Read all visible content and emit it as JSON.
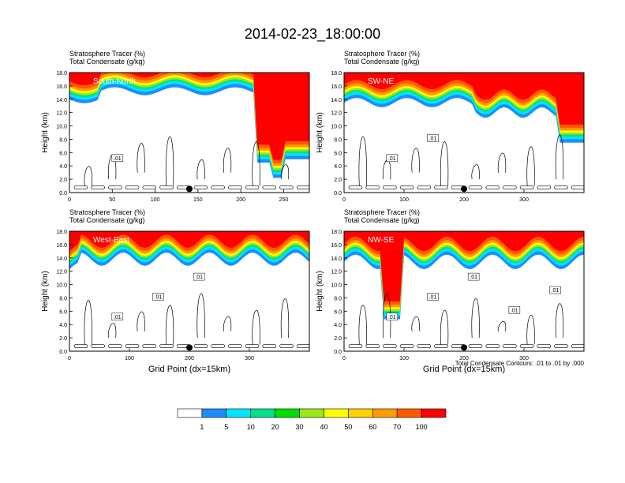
{
  "title": "2014-02-23_18:00:00",
  "colorbar": {
    "labels": [
      "1",
      "5",
      "10",
      "20",
      "30",
      "40",
      "50",
      "60",
      "70",
      "100"
    ],
    "colors": [
      "#ffffff",
      "#1e8cff",
      "#00e5ff",
      "#00e08a",
      "#00dd00",
      "#9be81a",
      "#ffff00",
      "#ffd000",
      "#ff9a00",
      "#ff5a00",
      "#ff0000"
    ]
  },
  "contour_note": "Total Condensate Contours: .01 to .01 by .000",
  "chart_data": [
    {
      "type": "heatmap",
      "panel_label": "South-North",
      "subtitle_lines": [
        "Stratosphere Tracer   (%)",
        "Total Condensate   (g/kg)"
      ],
      "ylabel": "Height (km)",
      "xlabel": "",
      "xlim": [
        0,
        280
      ],
      "ylim": [
        0,
        18
      ],
      "x_ticks": [
        "0",
        "50",
        "100",
        "150",
        "200",
        "250"
      ],
      "y_ticks": [
        "0.0",
        "2.0",
        "4.0",
        "6.0",
        "8.0",
        "10.0",
        "12.0",
        "14.0",
        "16.0",
        "18.0"
      ],
      "marker_x": 140,
      "contour_labels": [
        ".01"
      ]
    },
    {
      "type": "heatmap",
      "panel_label": "SW-NE",
      "subtitle_lines": [
        "Stratosphere Tracer   (%)",
        "Total Condensate   (g/kg)"
      ],
      "ylabel": "Height (km)",
      "xlabel": "",
      "xlim": [
        0,
        400
      ],
      "ylim": [
        0,
        18
      ],
      "x_ticks": [
        "0",
        "100",
        "200",
        "300"
      ],
      "y_ticks": [
        "0.0",
        "2.0",
        "4.0",
        "6.0",
        "8.0",
        "10.0",
        "12.0",
        "14.0",
        "16.0",
        "18.0"
      ],
      "marker_x": 200,
      "contour_labels": [
        ".01",
        ".01"
      ]
    },
    {
      "type": "heatmap",
      "panel_label": "West-East",
      "subtitle_lines": [
        "Stratosphere Tracer   (%)",
        "Total Condensate   (g/kg)"
      ],
      "ylabel": "Height (km)",
      "xlabel": "Grid Point (dx=15km)",
      "xlim": [
        0,
        400
      ],
      "ylim": [
        0,
        18
      ],
      "x_ticks": [
        "0",
        "100",
        "200",
        "300"
      ],
      "y_ticks": [
        "0.0",
        "2.0",
        "4.0",
        "6.0",
        "8.0",
        "10.0",
        "12.0",
        "14.0",
        "16.0",
        "18.0"
      ],
      "marker_x": 200,
      "contour_labels": [
        ".01",
        ".01",
        ".01"
      ]
    },
    {
      "type": "heatmap",
      "panel_label": "NW-SE",
      "subtitle_lines": [
        "Stratosphere Tracer   (%)",
        "Total Condensate   (g/kg)"
      ],
      "ylabel": "Height (km)",
      "xlabel": "Grid Point (dx=15km)",
      "xlim": [
        0,
        400
      ],
      "ylim": [
        0,
        18
      ],
      "x_ticks": [
        "0",
        "100",
        "200",
        "300"
      ],
      "y_ticks": [
        "0.0",
        "2.0",
        "4.0",
        "6.0",
        "8.0",
        "10.0",
        "12.0",
        "14.0",
        "16.0",
        "18.0"
      ],
      "marker_x": 200,
      "contour_labels": [
        ".01",
        ".01",
        ".01",
        ".01",
        ".01"
      ]
    }
  ]
}
